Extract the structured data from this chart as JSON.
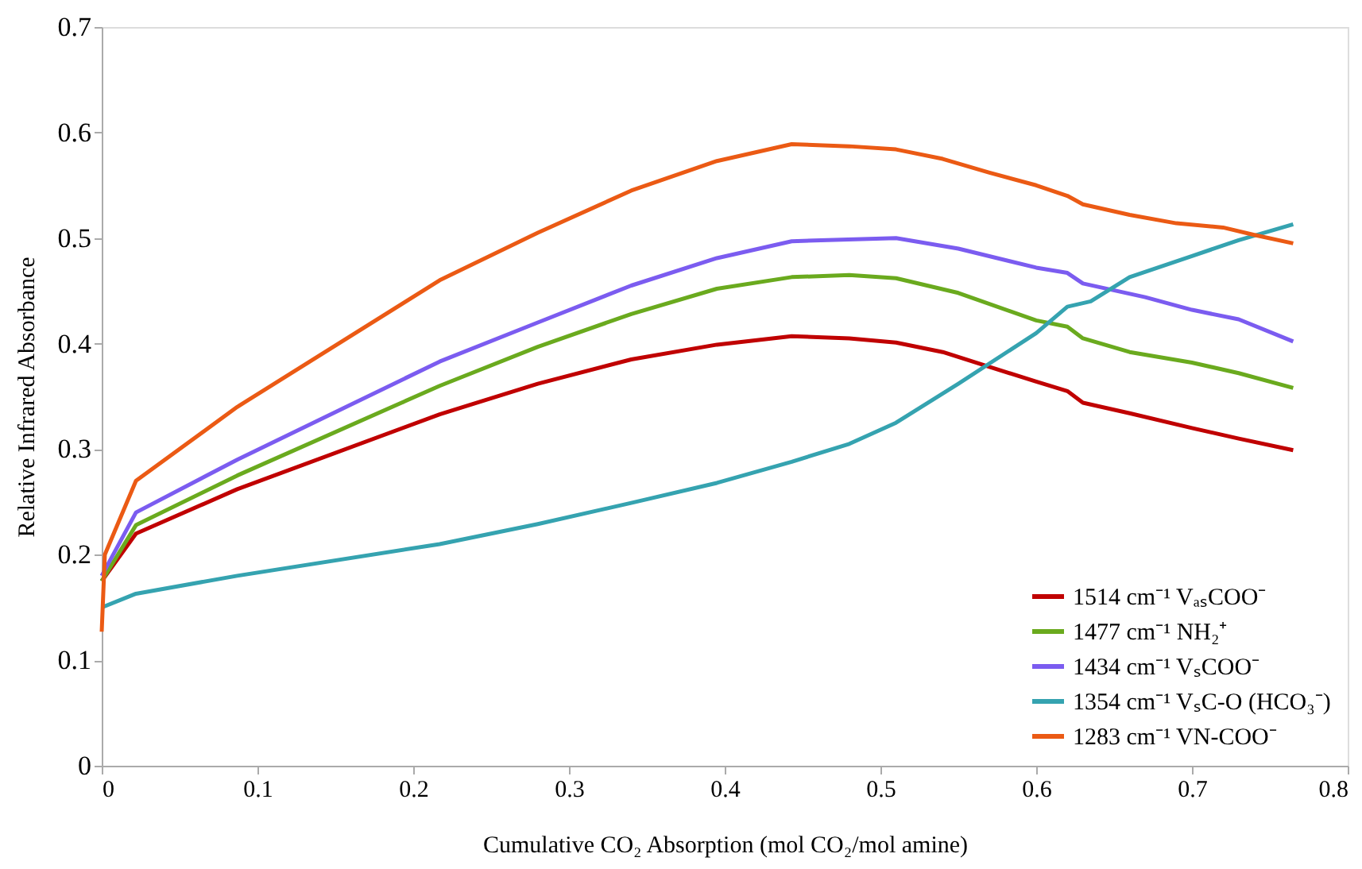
{
  "chart_data": {
    "type": "line",
    "xlabel": "Cumulative CO₂ Absorption (mol CO₂/mol amine)",
    "ylabel": "Relative Infrared  Absorbance",
    "xlim": [
      0,
      0.8
    ],
    "xticks": [
      0,
      0.1,
      0.2,
      0.3,
      0.4,
      0.5,
      0.6,
      0.7,
      0.8
    ],
    "ylim": [
      0,
      0.7
    ],
    "yticks": [
      0,
      0.1,
      0.2,
      0.3,
      0.4,
      0.5,
      0.6,
      0.7
    ],
    "grid": false,
    "legend": "bottom right",
    "marker": "none",
    "line_style": "solid",
    "series": [
      {
        "name": "1514 cm⁻¹ VₐₛCOO⁻",
        "color": "#c00000",
        "x": [
          0,
          0.022,
          0.087,
          0.217,
          0.28,
          0.34,
          0.395,
          0.443,
          0.48,
          0.51,
          0.54,
          0.57,
          0.6,
          0.62,
          0.63,
          0.66,
          0.7,
          0.73,
          0.765
        ],
        "values": [
          0.175,
          0.22,
          0.262,
          0.333,
          0.362,
          0.385,
          0.399,
          0.407,
          0.405,
          0.401,
          0.392,
          0.378,
          0.364,
          0.355,
          0.344,
          0.334,
          0.32,
          0.31,
          0.299
        ]
      },
      {
        "name": "1477 cm⁻¹ NH₂⁺",
        "color": "#6aaa1e",
        "x": [
          0,
          0.022,
          0.087,
          0.217,
          0.28,
          0.34,
          0.395,
          0.443,
          0.48,
          0.51,
          0.55,
          0.6,
          0.62,
          0.63,
          0.66,
          0.7,
          0.73,
          0.765
        ],
        "values": [
          0.175,
          0.228,
          0.275,
          0.36,
          0.397,
          0.428,
          0.452,
          0.463,
          0.465,
          0.462,
          0.448,
          0.422,
          0.416,
          0.405,
          0.392,
          0.382,
          0.372,
          0.358
        ]
      },
      {
        "name": "1434 cm⁻¹ VₛCOO⁻",
        "color": "#7b5cf0",
        "x": [
          0,
          0.022,
          0.087,
          0.217,
          0.28,
          0.34,
          0.395,
          0.443,
          0.51,
          0.55,
          0.6,
          0.62,
          0.63,
          0.67,
          0.7,
          0.73,
          0.765
        ],
        "values": [
          0.18,
          0.24,
          0.29,
          0.383,
          0.42,
          0.455,
          0.481,
          0.497,
          0.5,
          0.49,
          0.472,
          0.467,
          0.457,
          0.444,
          0.432,
          0.423,
          0.402
        ]
      },
      {
        "name": "1354 cm⁻¹ VₛC-O (HCO₃⁻)",
        "color": "#35a3b0",
        "x": [
          0,
          0.022,
          0.087,
          0.217,
          0.28,
          0.34,
          0.395,
          0.443,
          0.48,
          0.51,
          0.55,
          0.6,
          0.62,
          0.635,
          0.66,
          0.7,
          0.73,
          0.765
        ],
        "values": [
          0.15,
          0.163,
          0.18,
          0.21,
          0.229,
          0.249,
          0.268,
          0.288,
          0.305,
          0.325,
          0.362,
          0.41,
          0.435,
          0.44,
          0.463,
          0.483,
          0.498,
          0.513
        ]
      },
      {
        "name": "1283 cm⁻¹ VN-COO⁻",
        "color": "#eb5a14",
        "x": [
          0,
          0.002,
          0.022,
          0.087,
          0.217,
          0.28,
          0.34,
          0.395,
          0.443,
          0.48,
          0.51,
          0.54,
          0.57,
          0.6,
          0.62,
          0.63,
          0.66,
          0.69,
          0.72,
          0.74,
          0.765
        ],
        "values": [
          0.127,
          0.2,
          0.27,
          0.34,
          0.46,
          0.505,
          0.545,
          0.573,
          0.589,
          0.587,
          0.584,
          0.575,
          0.562,
          0.55,
          0.54,
          0.532,
          0.522,
          0.514,
          0.51,
          0.503,
          0.495
        ]
      }
    ]
  }
}
